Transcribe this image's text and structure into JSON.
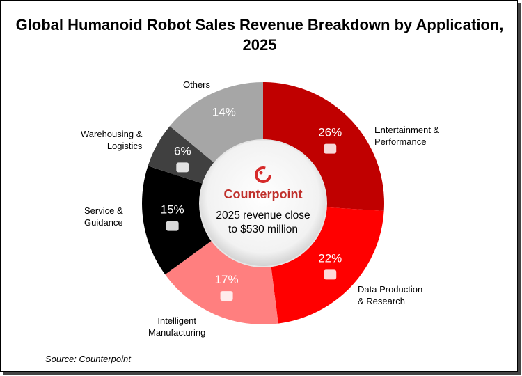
{
  "chart_data": {
    "type": "pie",
    "donut": true,
    "title": "Global Humanoid Robot Sales Revenue Breakdown by Application, 2025",
    "categories": [
      "Entertainment & Performance",
      "Data Production & Research",
      "Intelligent Manufacturing",
      "Service & Guidance",
      "Warehousing & Logistics",
      "Others"
    ],
    "values": [
      26,
      22,
      17,
      15,
      6,
      14
    ],
    "value_labels": [
      "26%",
      "22%",
      "17%",
      "15%",
      "6%",
      "14%"
    ],
    "colors": [
      "#c00000",
      "#ff0000",
      "#ff7f7f",
      "#000000",
      "#404040",
      "#a6a6a6"
    ],
    "icons": [
      "theater-masks-icon",
      "database-icon",
      "factory-gear-icon",
      "person-flag-icon",
      "delivery-truck-icon",
      ""
    ],
    "center": {
      "brand": "Counterpoint",
      "text_line1": "2025 revenue close",
      "text_line2": "to $530 million"
    },
    "source": "Source: Counterpoint"
  }
}
